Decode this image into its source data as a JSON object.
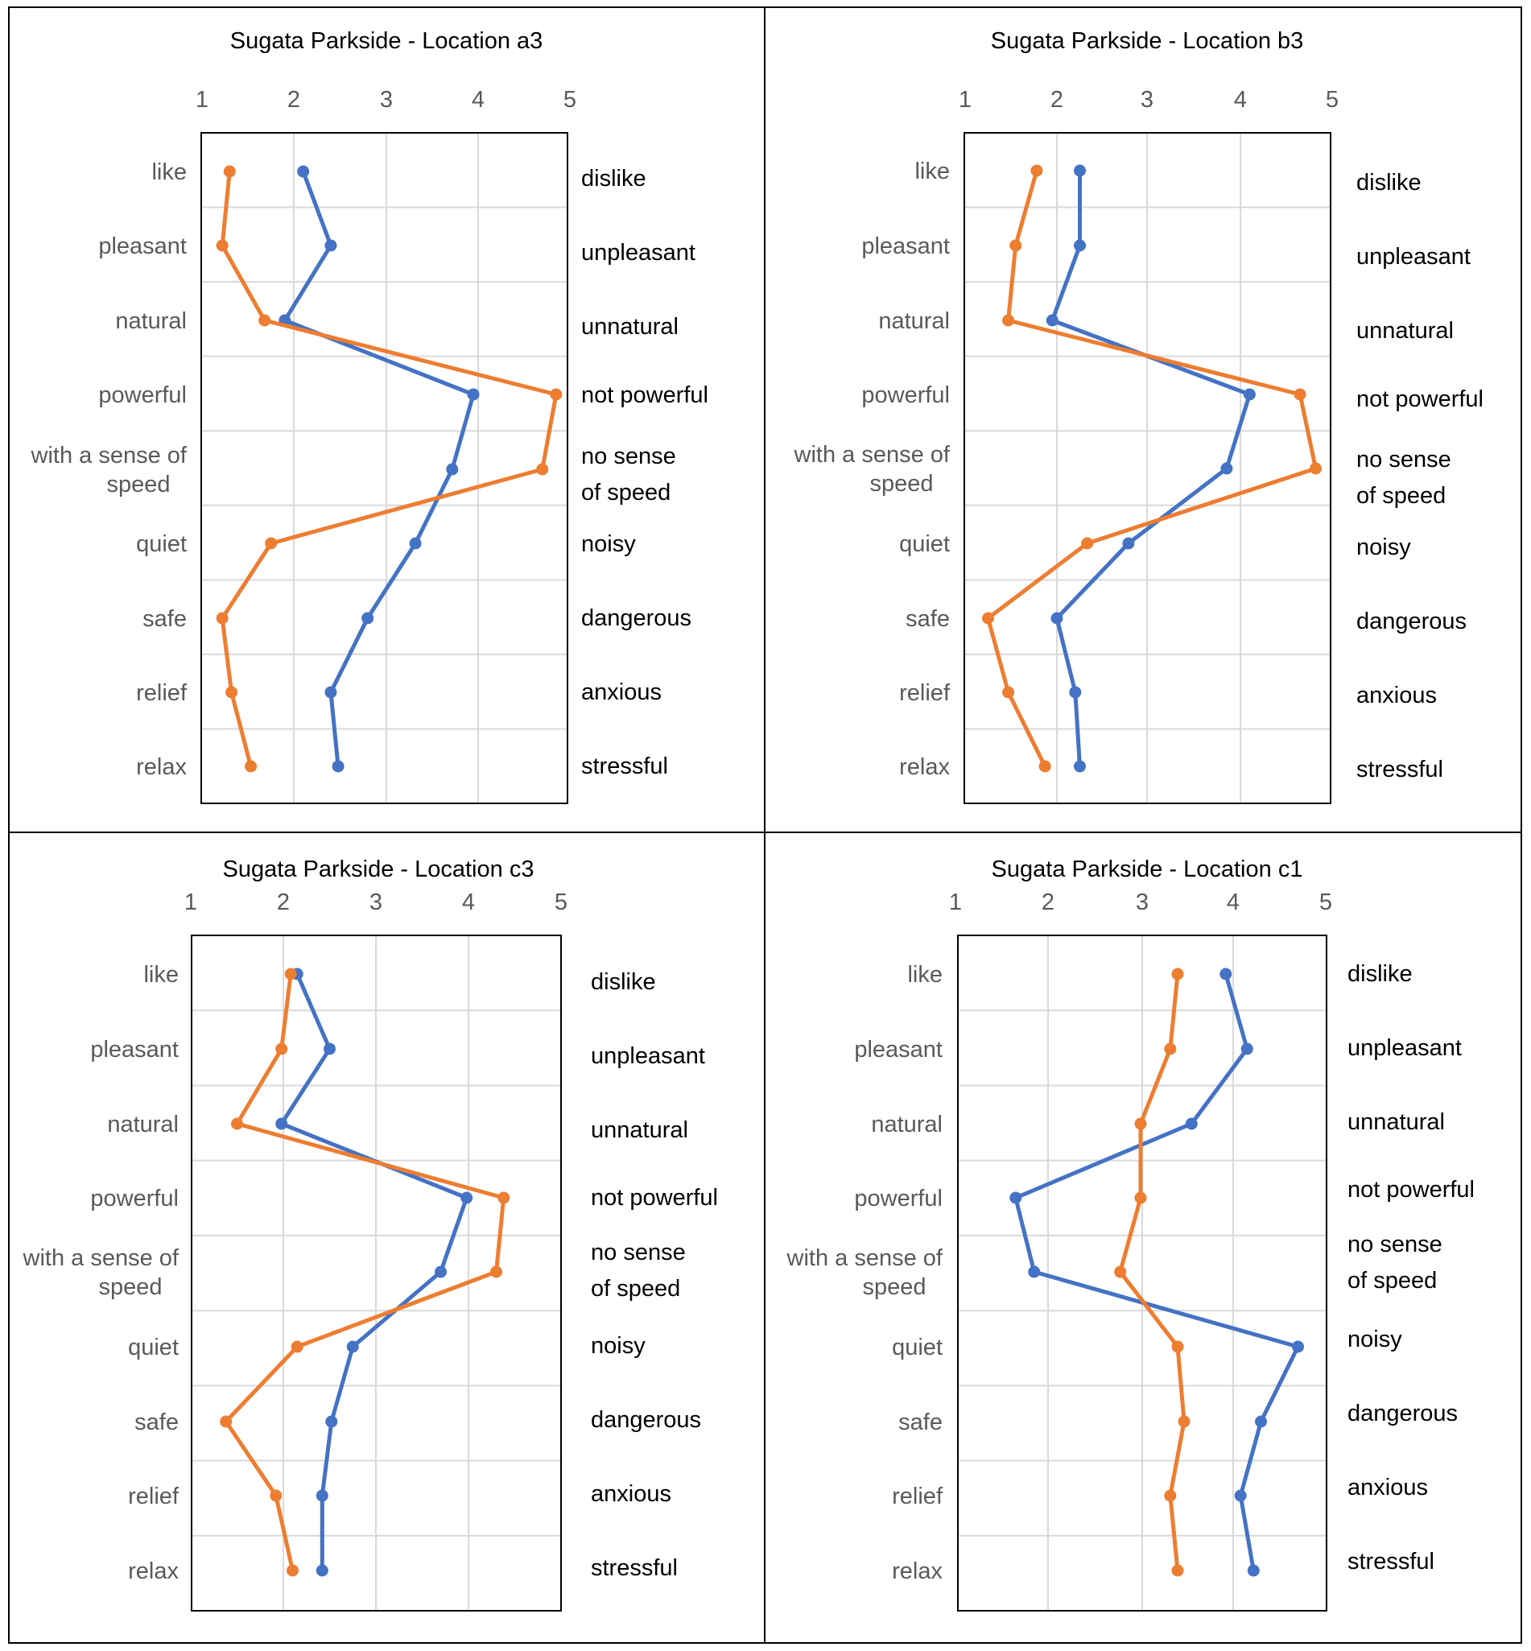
{
  "colors": {
    "series_blue": "#4472C4",
    "series_orange": "#ED7D31",
    "grid": "#D9D9D9",
    "frame": "#000000",
    "tick_text": "#595959"
  },
  "chart_data": [
    {
      "type": "line",
      "orientation": "horizontal-values",
      "title": "Sugata Parkside - Location a3",
      "xlim": [
        1,
        5
      ],
      "xticks": [
        "1",
        "2",
        "3",
        "4",
        "5"
      ],
      "left_labels": [
        [
          "like"
        ],
        [
          "pleasant"
        ],
        [
          "natural"
        ],
        [
          "powerful"
        ],
        [
          "with a sense of",
          "speed"
        ],
        [
          "quiet"
        ],
        [
          "safe"
        ],
        [
          "relief"
        ],
        [
          "relax"
        ]
      ],
      "right_labels": [
        [
          "dislike"
        ],
        [
          "unpleasant"
        ],
        [
          "unnatural"
        ],
        [
          "not powerful"
        ],
        [
          "no sense",
          "of speed"
        ],
        [
          "noisy"
        ],
        [
          "dangerous"
        ],
        [
          "anxious"
        ],
        [
          "stressful"
        ]
      ],
      "series": [
        {
          "color": "blue",
          "values": [
            2.1,
            2.4,
            1.9,
            3.95,
            3.72,
            3.32,
            2.8,
            2.4,
            2.48
          ]
        },
        {
          "color": "orange",
          "values": [
            1.3,
            1.22,
            1.68,
            4.85,
            4.7,
            1.75,
            1.22,
            1.32,
            1.53
          ]
        }
      ]
    },
    {
      "type": "line",
      "orientation": "horizontal-values",
      "title": "Sugata Parkside - Location b3",
      "xlim": [
        1,
        5
      ],
      "xticks": [
        "1",
        "2",
        "3",
        "4",
        "5"
      ],
      "left_labels": [
        [
          "like"
        ],
        [
          "pleasant"
        ],
        [
          "natural"
        ],
        [
          "powerful"
        ],
        [
          "with a sense of",
          "speed"
        ],
        [
          "quiet"
        ],
        [
          "safe"
        ],
        [
          "relief"
        ],
        [
          "relax"
        ]
      ],
      "right_labels": [
        [
          "dislike"
        ],
        [
          "unpleasant"
        ],
        [
          "unnatural"
        ],
        [
          "not powerful"
        ],
        [
          "no sense",
          "of speed"
        ],
        [
          "noisy"
        ],
        [
          "dangerous"
        ],
        [
          "anxious"
        ],
        [
          "stressful"
        ]
      ],
      "series": [
        {
          "color": "blue",
          "values": [
            2.25,
            2.25,
            1.95,
            4.1,
            3.85,
            2.78,
            2.0,
            2.2,
            2.25
          ]
        },
        {
          "color": "orange",
          "values": [
            1.78,
            1.55,
            1.47,
            4.65,
            4.82,
            2.33,
            1.25,
            1.47,
            1.87
          ]
        }
      ]
    },
    {
      "type": "line",
      "orientation": "horizontal-values",
      "title": "Sugata Parkside - Location c3",
      "xlim": [
        1,
        5
      ],
      "xticks": [
        "1",
        "2",
        "3",
        "4",
        "5"
      ],
      "left_labels": [
        [
          "like"
        ],
        [
          "pleasant"
        ],
        [
          "natural"
        ],
        [
          "powerful"
        ],
        [
          "with a sense of",
          "speed"
        ],
        [
          "quiet"
        ],
        [
          "safe"
        ],
        [
          "relief"
        ],
        [
          "relax"
        ]
      ],
      "right_labels": [
        [
          "dislike"
        ],
        [
          "unpleasant"
        ],
        [
          "unnatural"
        ],
        [
          "not powerful"
        ],
        [
          "no sense",
          "of speed"
        ],
        [
          "noisy"
        ],
        [
          "dangerous"
        ],
        [
          "anxious"
        ],
        [
          "stressful"
        ]
      ],
      "series": [
        {
          "color": "blue",
          "values": [
            2.15,
            2.5,
            1.98,
            3.98,
            3.7,
            2.75,
            2.52,
            2.42,
            2.42
          ]
        },
        {
          "color": "orange",
          "values": [
            2.08,
            1.98,
            1.5,
            4.38,
            4.3,
            2.15,
            1.38,
            1.92,
            2.1
          ]
        }
      ]
    },
    {
      "type": "line",
      "orientation": "horizontal-values",
      "title": "Sugata Parkside - Location c1",
      "xlim": [
        1,
        5
      ],
      "xticks": [
        "1",
        "2",
        "3",
        "4",
        "5"
      ],
      "left_labels": [
        [
          "like"
        ],
        [
          "pleasant"
        ],
        [
          "natural"
        ],
        [
          "powerful"
        ],
        [
          "with a sense of",
          "speed"
        ],
        [
          "quiet"
        ],
        [
          "safe"
        ],
        [
          "relief"
        ],
        [
          "relax"
        ]
      ],
      "right_labels": [
        [
          "dislike"
        ],
        [
          "unpleasant"
        ],
        [
          "unnatural"
        ],
        [
          "not powerful"
        ],
        [
          "no sense",
          "of speed"
        ],
        [
          "noisy"
        ],
        [
          "dangerous"
        ],
        [
          "anxious"
        ],
        [
          "stressful"
        ]
      ],
      "series": [
        {
          "color": "blue",
          "values": [
            3.92,
            4.15,
            3.55,
            1.65,
            1.85,
            4.7,
            4.3,
            4.08,
            4.22
          ]
        },
        {
          "color": "orange",
          "values": [
            3.4,
            3.32,
            3.0,
            3.0,
            2.78,
            3.4,
            3.47,
            3.32,
            3.4
          ]
        }
      ]
    }
  ]
}
